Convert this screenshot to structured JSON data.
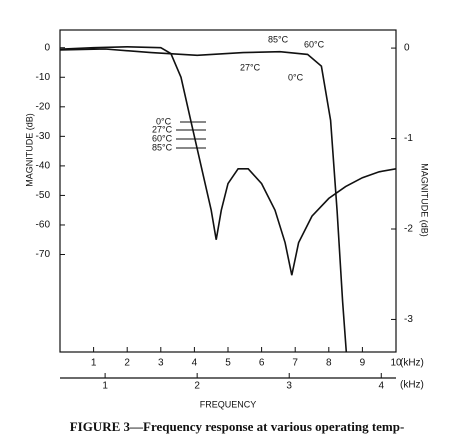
{
  "chart_data": {
    "type": "line",
    "caption": "FIGURE 3—Frequency response at various operating temp-",
    "ylabel": "MAGNITUDE (dB)",
    "y2label": "MAGNITUDE (dB)",
    "xlabel": "FREQUENCY",
    "xunit": "(kHz)",
    "x2unit": "(kHz)",
    "xlim": [
      0,
      10
    ],
    "xticks": [
      1,
      2,
      3,
      4,
      5,
      6,
      7,
      8,
      9,
      10
    ],
    "x2lim": [
      0.51,
      4.16
    ],
    "x2ticks": [
      1,
      2,
      3,
      4
    ],
    "ylim": [
      -103,
      6
    ],
    "yticks": [
      0,
      -10,
      -20,
      -30,
      -40,
      -50,
      -60,
      -70
    ],
    "y2lim": [
      -3.36,
      0.2
    ],
    "y2ticks": [
      0,
      -1,
      -2,
      -3
    ],
    "annotations": [
      "85°C",
      "60°C",
      "27°C",
      "0°C",
      "0°C",
      "27°C",
      "60°C",
      "85°C"
    ],
    "series": [
      {
        "color": "#111111",
        "x": [
          0,
          1,
          2,
          3,
          3.3,
          3.6,
          3.9,
          4.2,
          4.5,
          4.65,
          4.8,
          5.0,
          5.3,
          5.6,
          6.0,
          6.4,
          6.7,
          6.9,
          7.1,
          7.5,
          8,
          8.5,
          9,
          9.5,
          10
        ],
        "values": [
          -0.5,
          0,
          0.3,
          0,
          -2,
          -10,
          -25,
          -40,
          -55,
          -65,
          -55,
          -46,
          -41,
          -41,
          -46,
          -55,
          -66,
          -77,
          -66,
          -57,
          -51,
          -47,
          -44,
          -42,
          -41
        ]
      },
      {
        "color": "#111111",
        "axis": "y2",
        "x_axis": "x2",
        "x": [
          0.51,
          1,
          1.5,
          2.0,
          2.5,
          2.9,
          3.2,
          3.35,
          3.45,
          3.52,
          3.58,
          3.62
        ],
        "values": [
          -0.02,
          -0.01,
          -0.05,
          -0.08,
          -0.05,
          -0.04,
          -0.07,
          -0.2,
          -0.8,
          -1.8,
          -2.8,
          -3.36
        ]
      }
    ]
  }
}
